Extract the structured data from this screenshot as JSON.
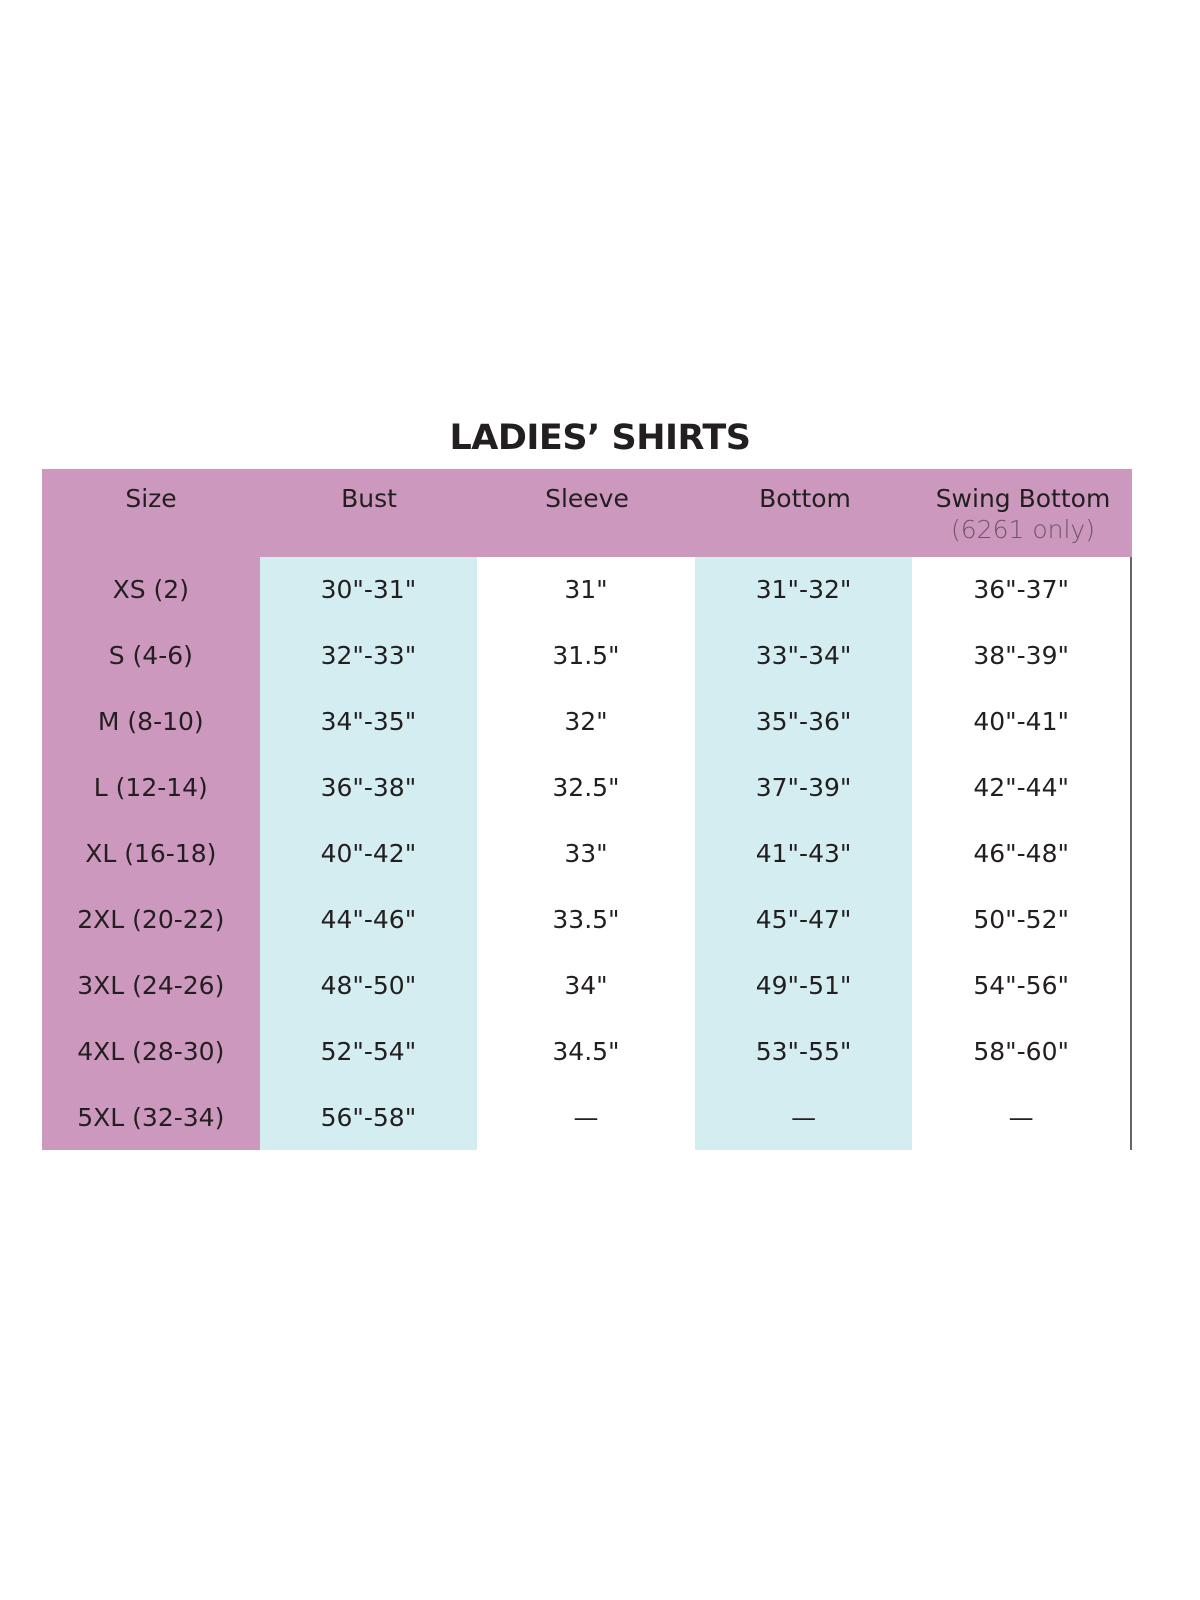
{
  "title": "LADIES’ SHIRTS",
  "colors": {
    "header": "#cd98bd",
    "highlight_column": "#d3edf1"
  },
  "columns": [
    {
      "label": "Size",
      "sub": ""
    },
    {
      "label": "Bust",
      "sub": ""
    },
    {
      "label": "Sleeve",
      "sub": ""
    },
    {
      "label": "Bottom",
      "sub": ""
    },
    {
      "label": "Swing Bottom",
      "sub": "(6261 only)"
    }
  ],
  "rows": [
    [
      "XS (2)",
      "30\"-31\"",
      "31\"",
      "31\"-32\"",
      "36\"-37\""
    ],
    [
      "S (4-6)",
      "32\"-33\"",
      "31.5\"",
      "33\"-34\"",
      "38\"-39\""
    ],
    [
      "M (8-10)",
      "34\"-35\"",
      "32\"",
      "35\"-36\"",
      "40\"-41\""
    ],
    [
      "L (12-14)",
      "36\"-38\"",
      "32.5\"",
      "37\"-39\"",
      "42\"-44\""
    ],
    [
      "XL (16-18)",
      "40\"-42\"",
      "33\"",
      "41\"-43\"",
      "46\"-48\""
    ],
    [
      "2XL (20-22)",
      "44\"-46\"",
      "33.5\"",
      "45\"-47\"",
      "50\"-52\""
    ],
    [
      "3XL (24-26)",
      "48\"-50\"",
      "34\"",
      "49\"-51\"",
      "54\"-56\""
    ],
    [
      "4XL (28-30)",
      "52\"-54\"",
      "34.5\"",
      "53\"-55\"",
      "58\"-60\""
    ],
    [
      "5XL (32-34)",
      "56\"-58\"",
      "—",
      "—",
      "—"
    ]
  ]
}
